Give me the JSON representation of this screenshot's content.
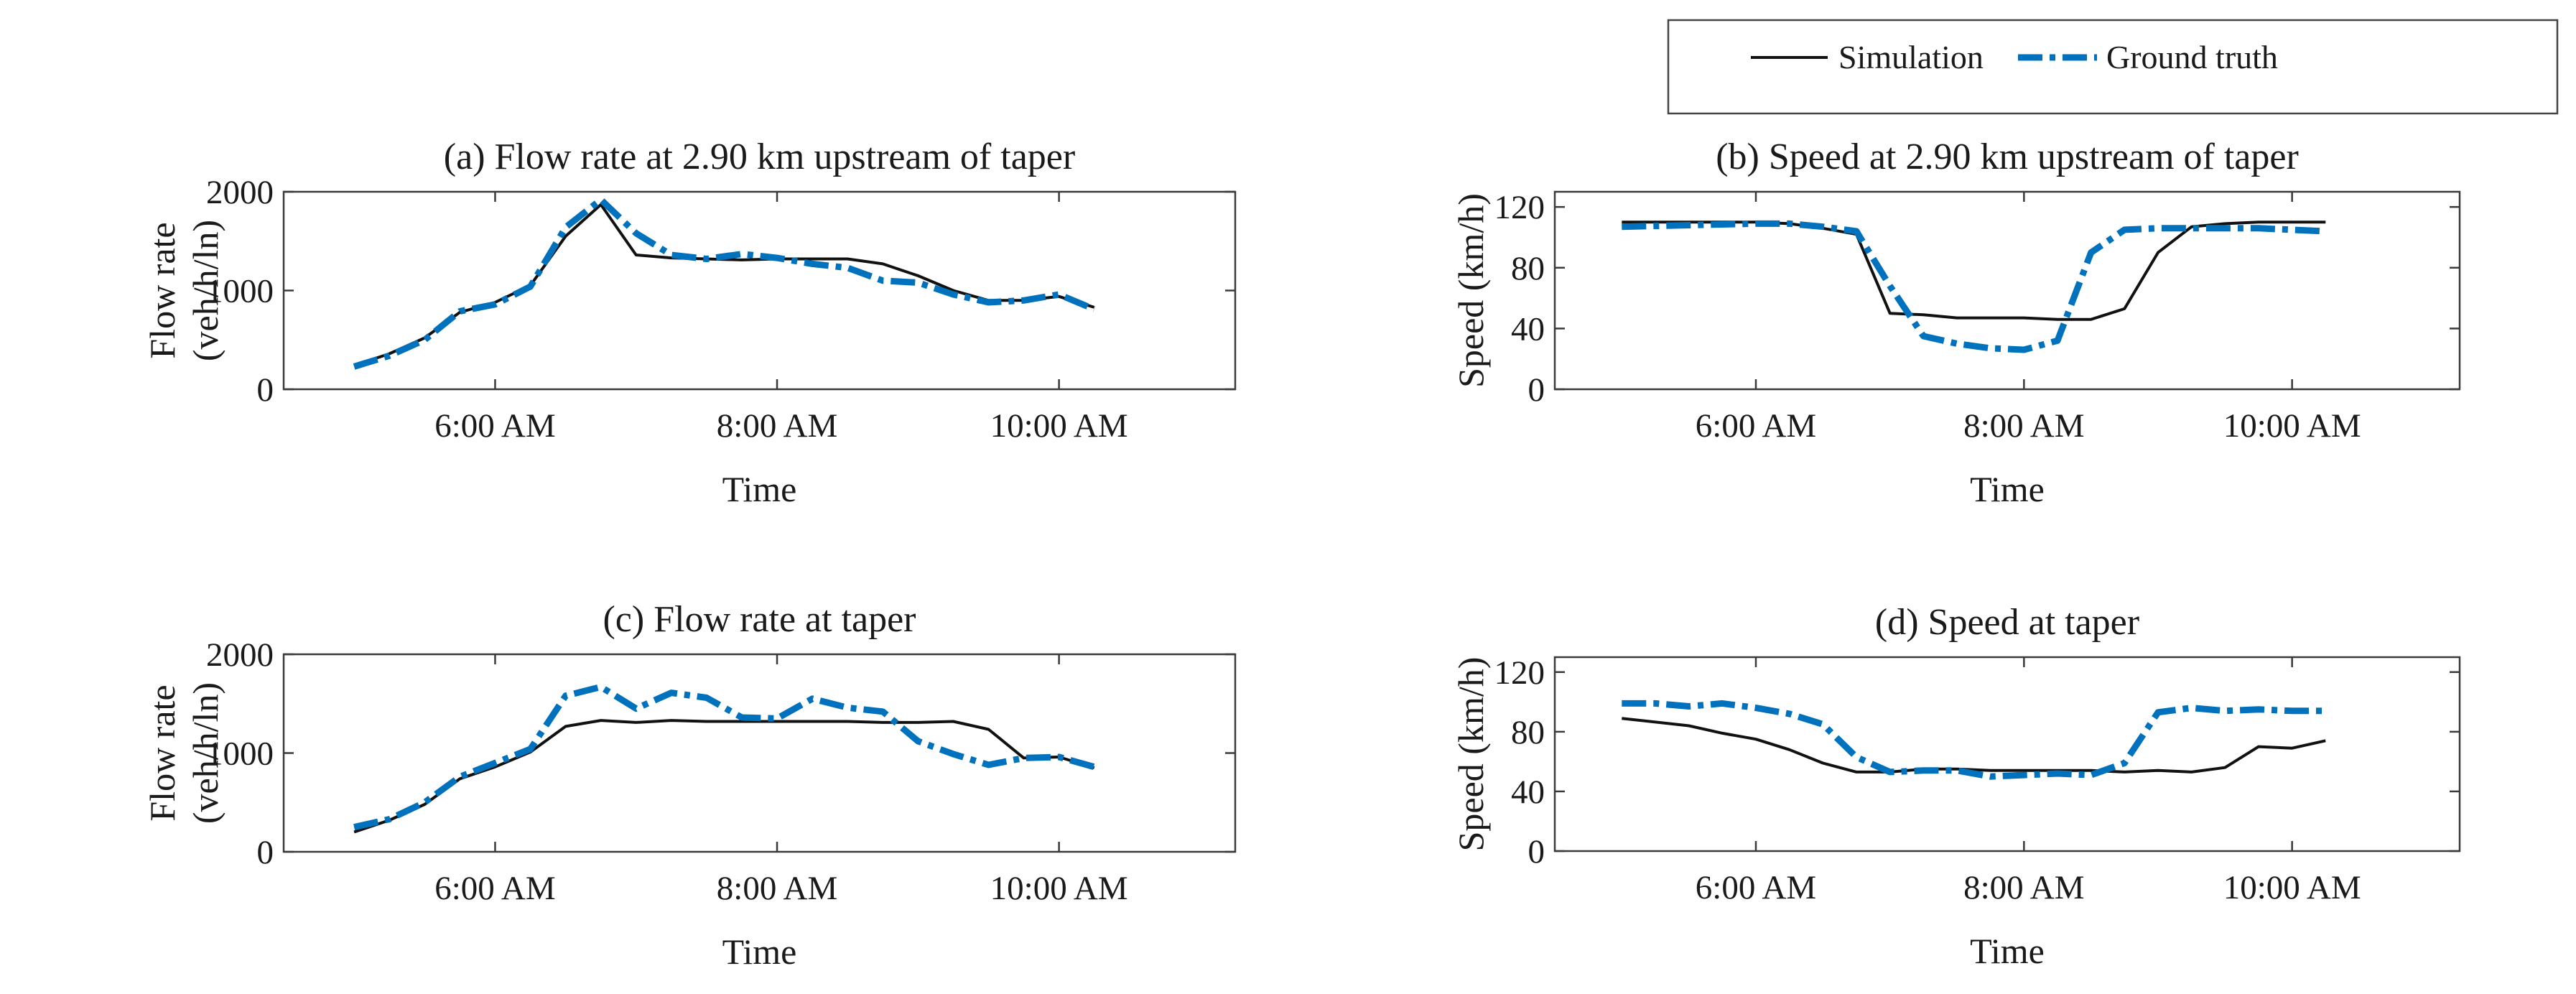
{
  "chart_data": [
    {
      "id": "a",
      "type": "line",
      "title": "(a) Flow rate at 2.90 km upstream of taper",
      "xlabel": "Time",
      "ylabel": [
        "Flow rate",
        "(veh/h/ln)"
      ],
      "xlim": [
        4.5,
        11.25
      ],
      "ylim": [
        0,
        2000
      ],
      "xticks": [
        6,
        8,
        10
      ],
      "xtick_labels": [
        "6:00 AM",
        "8:00 AM",
        "10:00 AM"
      ],
      "yticks": [
        0,
        1000,
        2000
      ],
      "ytick_labels": [
        "0",
        "1000",
        "2000"
      ],
      "grid": false,
      "series": [
        {
          "name": "Simulation",
          "x": [
            5.0,
            5.25,
            5.5,
            5.75,
            6.0,
            6.25,
            6.5,
            6.75,
            7.0,
            7.25,
            7.5,
            7.75,
            8.0,
            8.25,
            8.5,
            8.75,
            9.0,
            9.25,
            9.5,
            9.75,
            10.0,
            10.25
          ],
          "values": [
            240,
            360,
            520,
            780,
            880,
            1050,
            1550,
            1870,
            1360,
            1330,
            1320,
            1310,
            1320,
            1320,
            1320,
            1270,
            1150,
            1000,
            900,
            900,
            940,
            830
          ]
        },
        {
          "name": "Ground truth",
          "x": [
            5.0,
            5.25,
            5.5,
            5.75,
            6.0,
            6.25,
            6.5,
            6.75,
            7.0,
            7.25,
            7.5,
            7.75,
            8.0,
            8.25,
            8.5,
            8.75,
            9.0,
            9.25,
            9.5,
            9.75,
            10.0,
            10.25
          ],
          "values": [
            230,
            340,
            500,
            790,
            860,
            1040,
            1640,
            1920,
            1580,
            1360,
            1320,
            1370,
            1330,
            1270,
            1230,
            1100,
            1080,
            960,
            880,
            900,
            960,
            810
          ]
        }
      ]
    },
    {
      "id": "b",
      "type": "line",
      "title": "(b) Speed at 2.90 km upstream of taper",
      "xlabel": "Time",
      "ylabel": [
        "Speed (km/h)"
      ],
      "xlim": [
        4.5,
        11.25
      ],
      "ylim": [
        0,
        130
      ],
      "xticks": [
        6,
        8,
        10
      ],
      "xtick_labels": [
        "6:00 AM",
        "8:00 AM",
        "10:00 AM"
      ],
      "yticks": [
        0,
        40,
        80,
        120
      ],
      "ytick_labels": [
        "0",
        "40",
        "80",
        "120"
      ],
      "grid": false,
      "series": [
        {
          "name": "Simulation",
          "x": [
            5.0,
            5.5,
            6.0,
            6.25,
            6.5,
            6.75,
            7.0,
            7.25,
            7.5,
            7.75,
            8.0,
            8.25,
            8.5,
            8.75,
            9.0,
            9.25,
            9.5,
            9.75,
            10.0,
            10.25
          ],
          "values": [
            110,
            110,
            110,
            109,
            106,
            102,
            50,
            49,
            47,
            47,
            47,
            46,
            46,
            53,
            90,
            107,
            109,
            110,
            110,
            110
          ]
        },
        {
          "name": "Ground truth",
          "x": [
            5.0,
            5.5,
            6.0,
            6.25,
            6.5,
            6.75,
            7.0,
            7.25,
            7.5,
            7.75,
            8.0,
            8.25,
            8.5,
            8.75,
            9.0,
            9.25,
            9.5,
            9.75,
            10.0,
            10.25
          ],
          "values": [
            107,
            108,
            109,
            109,
            107,
            104,
            68,
            35,
            30,
            27,
            26,
            32,
            90,
            105,
            106,
            106,
            106,
            106,
            105,
            104
          ]
        }
      ]
    },
    {
      "id": "c",
      "type": "line",
      "title": "(c) Flow rate at taper",
      "xlabel": "Time",
      "ylabel": [
        "Flow rate",
        "(veh/h/ln)"
      ],
      "xlim": [
        4.5,
        11.25
      ],
      "ylim": [
        0,
        2000
      ],
      "xticks": [
        6,
        8,
        10
      ],
      "xtick_labels": [
        "6:00 AM",
        "8:00 AM",
        "10:00 AM"
      ],
      "yticks": [
        0,
        1000,
        2000
      ],
      "ytick_labels": [
        "0",
        "1000",
        "2000"
      ],
      "grid": false,
      "series": [
        {
          "name": "Simulation",
          "x": [
            5.0,
            5.25,
            5.5,
            5.75,
            6.0,
            6.25,
            6.5,
            6.75,
            7.0,
            7.25,
            7.5,
            7.75,
            8.0,
            8.25,
            8.5,
            8.75,
            9.0,
            9.25,
            9.5,
            9.75,
            10.0,
            10.25
          ],
          "values": [
            200,
            320,
            480,
            740,
            860,
            1010,
            1270,
            1330,
            1310,
            1330,
            1320,
            1320,
            1320,
            1320,
            1320,
            1310,
            1310,
            1320,
            1240,
            950,
            960,
            850
          ]
        },
        {
          "name": "Ground truth",
          "x": [
            5.0,
            5.25,
            5.5,
            5.75,
            6.0,
            6.25,
            6.5,
            6.75,
            7.0,
            7.25,
            7.5,
            7.75,
            8.0,
            8.25,
            8.5,
            8.75,
            9.0,
            9.25,
            9.5,
            9.75,
            10.0,
            10.25
          ],
          "values": [
            250,
            330,
            500,
            760,
            900,
            1040,
            1580,
            1670,
            1450,
            1610,
            1560,
            1360,
            1350,
            1550,
            1460,
            1420,
            1120,
            990,
            880,
            950,
            960,
            860
          ]
        }
      ]
    },
    {
      "id": "d",
      "type": "line",
      "title": "(d) Speed at taper",
      "xlabel": "Time",
      "ylabel": [
        "Speed (km/h)"
      ],
      "xlim": [
        4.5,
        11.25
      ],
      "ylim": [
        0,
        130
      ],
      "xticks": [
        6,
        8,
        10
      ],
      "xtick_labels": [
        "6:00 AM",
        "8:00 AM",
        "10:00 AM"
      ],
      "yticks": [
        0,
        40,
        80,
        120
      ],
      "ytick_labels": [
        "0",
        "40",
        "80",
        "120"
      ],
      "grid": false,
      "series": [
        {
          "name": "Simulation",
          "x": [
            5.0,
            5.5,
            5.75,
            6.0,
            6.25,
            6.5,
            6.75,
            7.0,
            7.25,
            7.5,
            7.75,
            8.0,
            8.25,
            8.5,
            8.75,
            9.0,
            9.25,
            9.5,
            9.75,
            10.0,
            10.25
          ],
          "values": [
            89,
            84,
            79,
            75,
            68,
            59,
            53,
            53,
            55,
            55,
            54,
            54,
            54,
            54,
            53,
            54,
            53,
            56,
            70,
            69,
            74
          ]
        },
        {
          "name": "Ground truth",
          "x": [
            5.0,
            5.25,
            5.5,
            5.75,
            6.0,
            6.25,
            6.5,
            6.75,
            7.0,
            7.25,
            7.5,
            7.75,
            8.0,
            8.25,
            8.5,
            8.75,
            9.0,
            9.25,
            9.5,
            9.75,
            10.0,
            10.25
          ],
          "values": [
            99,
            99,
            97,
            99,
            96,
            92,
            85,
            63,
            53,
            54,
            54,
            50,
            51,
            52,
            51,
            59,
            93,
            96,
            94,
            95,
            94,
            94
          ]
        }
      ]
    }
  ],
  "legend": {
    "items": [
      {
        "label": "Simulation",
        "color": "#111111"
      },
      {
        "label": "Ground truth",
        "color": "#0072BD"
      }
    ]
  }
}
